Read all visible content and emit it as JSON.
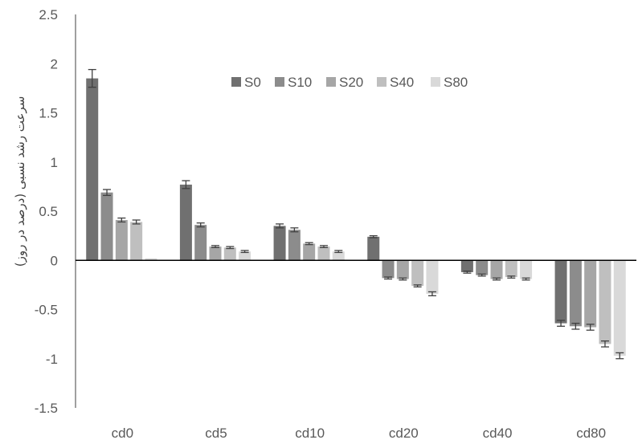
{
  "chart_data": {
    "type": "bar",
    "title": "",
    "xlabel": "",
    "ylabel": "سرعت رشد نسبی (درصد در روز)",
    "ylim": [
      -1.5,
      2.5
    ],
    "yticks": [
      2.5,
      2,
      1.5,
      1,
      0.5,
      0,
      -0.5,
      -1,
      -1.5
    ],
    "ytick_labels": [
      "2.5",
      "2",
      "1.5",
      "1",
      "0.5",
      "0",
      "-0.5",
      "-1",
      "-1.5"
    ],
    "categories": [
      "cd0",
      "cd5",
      "cd10",
      "cd20",
      "cd40",
      "cd80"
    ],
    "legend_position": "top-center",
    "grid": false,
    "series": [
      {
        "name": "S0",
        "color": "#707070",
        "values": [
          1.85,
          0.77,
          0.35,
          0.24,
          -0.12,
          -0.64
        ],
        "errors": [
          0.09,
          0.04,
          0.02,
          0.01,
          0.01,
          0.03
        ]
      },
      {
        "name": "S10",
        "color": "#8c8c8c",
        "values": [
          0.69,
          0.36,
          0.31,
          -0.18,
          -0.15,
          -0.67
        ],
        "errors": [
          0.03,
          0.02,
          0.02,
          0.01,
          0.01,
          0.03
        ]
      },
      {
        "name": "S20",
        "color": "#a6a6a6",
        "values": [
          0.41,
          0.14,
          0.17,
          -0.19,
          -0.19,
          -0.68
        ],
        "errors": [
          0.02,
          0.01,
          0.01,
          0.01,
          0.01,
          0.03
        ]
      },
      {
        "name": "S40",
        "color": "#bfbfbf",
        "values": [
          0.39,
          0.13,
          0.14,
          -0.26,
          -0.17,
          -0.85
        ],
        "errors": [
          0.02,
          0.01,
          0.01,
          0.01,
          0.01,
          0.03
        ]
      },
      {
        "name": "S80",
        "color": "#d9d9d9",
        "values": [
          0.02,
          0.09,
          0.09,
          -0.34,
          -0.19,
          -0.97
        ],
        "errors": [
          0.0,
          0.01,
          0.01,
          0.02,
          0.01,
          0.03
        ]
      }
    ]
  }
}
